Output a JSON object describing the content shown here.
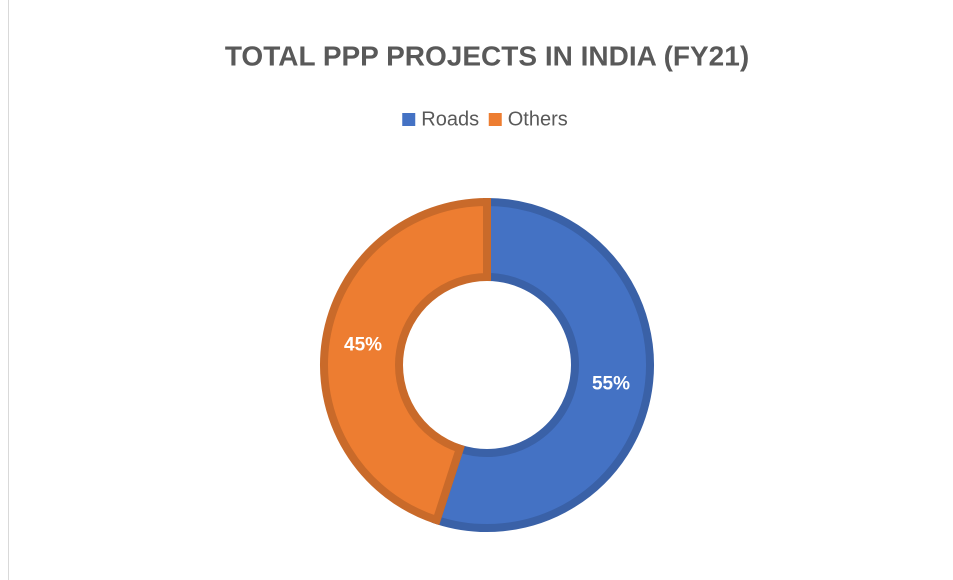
{
  "chart_data": {
    "type": "donut",
    "title": "TOTAL PPP PROJECTS IN INDIA (FY21)",
    "categories": [
      "Roads",
      "Others"
    ],
    "values": [
      55,
      45
    ],
    "value_labels": [
      "55%",
      "45%"
    ],
    "colors": [
      "#4472c4",
      "#ed7d31"
    ],
    "legend": "top"
  }
}
